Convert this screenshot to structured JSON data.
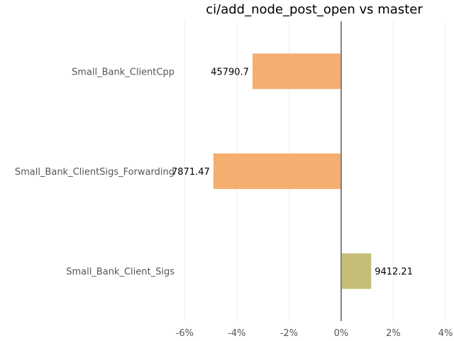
{
  "chart_data": {
    "type": "bar",
    "orientation": "horizontal",
    "title": "ci/add_node_post_open vs master",
    "xlabel": "",
    "ylabel": "",
    "categories": [
      "Small_Bank_ClientCpp",
      "Small_Bank_ClientSigs_Forwarding",
      "Small_Bank_Client_Sigs"
    ],
    "values": [
      -3.4,
      -4.9,
      1.15
    ],
    "data_labels": [
      "45790.7",
      "7871.47",
      "9412.21"
    ],
    "bar_colors": [
      "#f4ae70",
      "#f4ae70",
      "#c4be78"
    ],
    "xlim": [
      -6.2,
      4.0
    ],
    "x_ticks": [
      -6,
      -4,
      -2,
      0,
      2,
      4
    ],
    "x_tick_labels": [
      "-6%",
      "-4%",
      "-2%",
      "0%",
      "2%",
      "4%"
    ],
    "grid": true,
    "legend": "none"
  }
}
